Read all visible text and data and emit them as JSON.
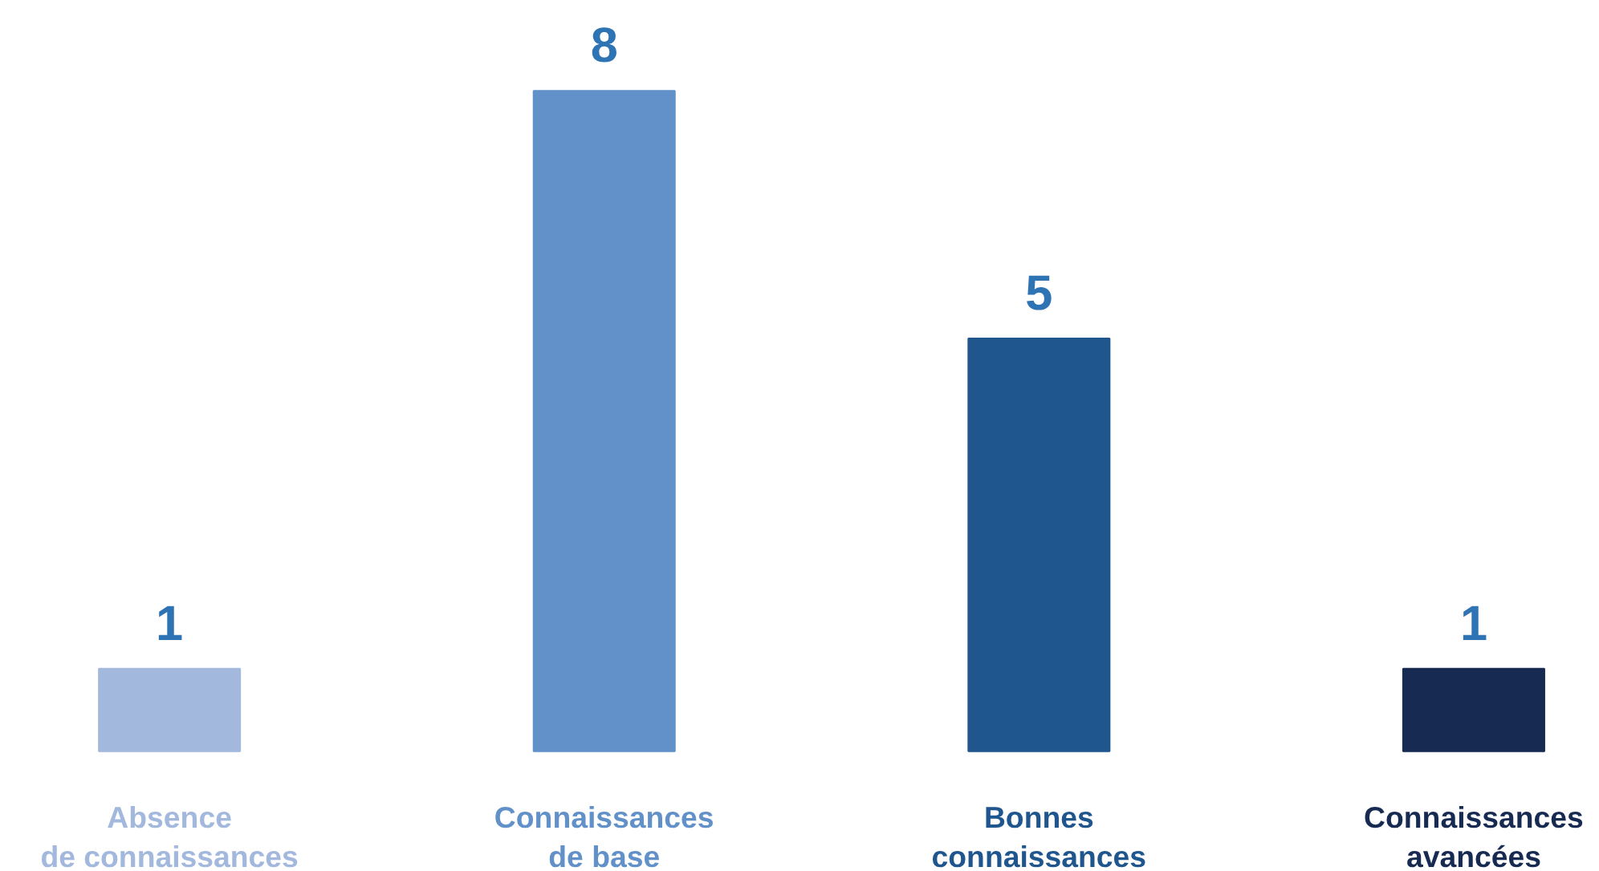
{
  "chart_data": {
    "type": "bar",
    "categories": [
      "Absence de connaissances",
      "Connaissances de base",
      "Bonnes connaissances",
      "Connaissances avancées"
    ],
    "values": [
      1,
      8,
      5,
      1
    ],
    "colors": [
      "#a2b8dd",
      "#6191c8",
      "#1f568e",
      "#162a52"
    ],
    "data_labels": true
  }
}
